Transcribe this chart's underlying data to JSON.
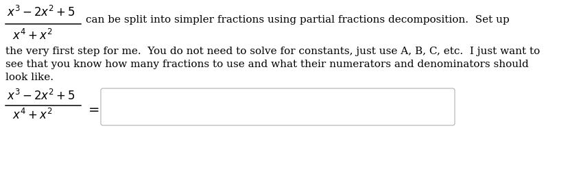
{
  "bg_color": "#ffffff",
  "text_color": "#000000",
  "frac_num": "$x^3 - 2x^2 + 5$",
  "frac_den": "$x^4 + x^2$",
  "inline_text": "can be split into simpler fractions using partial fractions decomposition.  Set up",
  "body_line1": "the very first step for me.  You do not need to solve for constants, just use A, B, C, etc.  I just want to",
  "body_line2": "see that you know how many fractions to use and what their numerators and denominators should",
  "body_line3": "look like.",
  "eq_sign": "$=$",
  "font_size_math": 12,
  "font_size_body": 11,
  "box_edge_color": "#b0b0b0",
  "fig_width": 8.31,
  "fig_height": 2.54,
  "dpi": 100
}
